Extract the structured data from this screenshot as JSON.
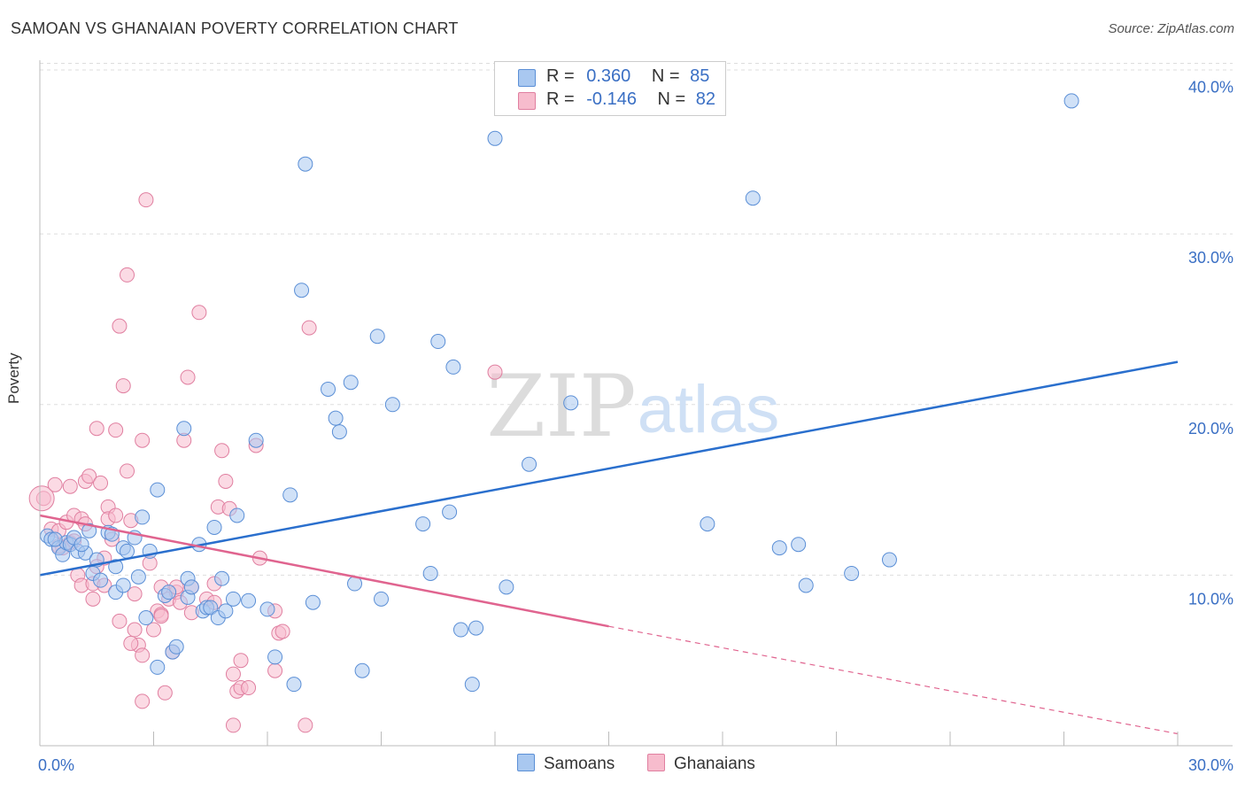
{
  "title": "SAMOAN VS GHANAIAN POVERTY CORRELATION CHART",
  "source": "Source: ZipAtlas.com",
  "watermark": {
    "zip": "ZIP",
    "atlas": "atlas"
  },
  "legend": {
    "rows": [
      {
        "r_label": "R =",
        "r_value": "0.360",
        "n_label": "N =",
        "n_value": "85",
        "color": "#a9c8f0",
        "border": "#5b8fd6"
      },
      {
        "r_label": "R =",
        "r_value": "-0.146",
        "n_label": "N =",
        "n_value": "82",
        "color": "#f7bccd",
        "border": "#e07fa0"
      }
    ]
  },
  "bottom_legend": {
    "samoans": "Samoans",
    "ghanaians": "Ghanaians"
  },
  "chart_data": {
    "type": "scatter",
    "title": "SAMOAN VS GHANAIAN POVERTY CORRELATION CHART",
    "xlabel": "",
    "ylabel": "Poverty",
    "xlim": [
      0,
      30
    ],
    "ylim": [
      0,
      40.6
    ],
    "x_tick_labels": [
      "0.0%",
      "30.0%"
    ],
    "y_ticks": [
      10,
      20,
      30,
      40
    ],
    "y_tick_labels": [
      "10.0%",
      "20.0%",
      "30.0%",
      "40.0%"
    ],
    "grid": true,
    "series": [
      {
        "name": "Samoans",
        "color": "#a9c8f0",
        "stroke": "#5b8fd6",
        "r": 0.36,
        "n": 85,
        "trend": {
          "x0": 0,
          "y0": 10.0,
          "x1": 30,
          "y1": 22.5,
          "color": "#2a6fcd"
        },
        "points": [
          [
            0.2,
            12.3
          ],
          [
            0.3,
            12.1
          ],
          [
            0.5,
            11.6
          ],
          [
            0.6,
            11.2
          ],
          [
            0.7,
            11.9
          ],
          [
            0.8,
            11.8
          ],
          [
            0.9,
            12.2
          ],
          [
            1.0,
            11.4
          ],
          [
            1.2,
            11.3
          ],
          [
            1.3,
            12.6
          ],
          [
            1.4,
            10.1
          ],
          [
            1.5,
            10.9
          ],
          [
            1.6,
            9.7
          ],
          [
            1.8,
            12.5
          ],
          [
            1.9,
            12.4
          ],
          [
            2.0,
            9.0
          ],
          [
            2.0,
            10.5
          ],
          [
            2.2,
            11.6
          ],
          [
            2.3,
            11.4
          ],
          [
            2.5,
            12.2
          ],
          [
            2.6,
            9.9
          ],
          [
            2.7,
            13.4
          ],
          [
            2.8,
            7.5
          ],
          [
            2.9,
            11.4
          ],
          [
            3.1,
            4.6
          ],
          [
            3.1,
            15.0
          ],
          [
            3.3,
            8.8
          ],
          [
            3.4,
            9.0
          ],
          [
            3.5,
            5.5
          ],
          [
            3.6,
            5.8
          ],
          [
            3.8,
            18.6
          ],
          [
            3.9,
            8.7
          ],
          [
            3.9,
            9.8
          ],
          [
            4.0,
            9.3
          ],
          [
            4.2,
            11.8
          ],
          [
            4.3,
            7.9
          ],
          [
            4.4,
            8.1
          ],
          [
            4.5,
            8.1
          ],
          [
            4.7,
            7.5
          ],
          [
            4.8,
            9.8
          ],
          [
            4.9,
            7.9
          ],
          [
            5.1,
            8.6
          ],
          [
            5.2,
            13.5
          ],
          [
            5.5,
            8.5
          ],
          [
            5.7,
            17.9
          ],
          [
            6.0,
            8.0
          ],
          [
            6.2,
            5.2
          ],
          [
            6.6,
            14.7
          ],
          [
            6.7,
            3.6
          ],
          [
            6.9,
            26.7
          ],
          [
            7.0,
            34.1
          ],
          [
            7.2,
            8.4
          ],
          [
            7.6,
            20.9
          ],
          [
            7.8,
            19.2
          ],
          [
            7.9,
            18.4
          ],
          [
            8.2,
            21.3
          ],
          [
            8.3,
            9.5
          ],
          [
            8.5,
            4.4
          ],
          [
            8.9,
            24.0
          ],
          [
            9.0,
            8.6
          ],
          [
            9.3,
            20.0
          ],
          [
            10.1,
            13.0
          ],
          [
            10.3,
            10.1
          ],
          [
            10.5,
            23.7
          ],
          [
            10.8,
            13.7
          ],
          [
            10.9,
            22.2
          ],
          [
            11.1,
            6.8
          ],
          [
            11.4,
            3.6
          ],
          [
            11.5,
            6.9
          ],
          [
            12.0,
            35.6
          ],
          [
            12.3,
            9.3
          ],
          [
            12.9,
            16.5
          ],
          [
            14.0,
            20.1
          ],
          [
            17.6,
            13.0
          ],
          [
            18.8,
            32.1
          ],
          [
            19.5,
            11.6
          ],
          [
            20.0,
            11.8
          ],
          [
            20.2,
            9.4
          ],
          [
            21.4,
            10.1
          ],
          [
            22.4,
            10.9
          ],
          [
            27.2,
            37.8
          ],
          [
            1.1,
            11.8
          ],
          [
            2.2,
            9.4
          ],
          [
            4.6,
            12.8
          ],
          [
            0.4,
            12.1
          ]
        ]
      },
      {
        "name": "Ghanaians",
        "color": "#f7bccd",
        "stroke": "#e07fa0",
        "r": -0.146,
        "n": 82,
        "trend": {
          "x0": 0,
          "y0": 13.5,
          "x1": 15,
          "y1": 7.0,
          "dash_x1": 30,
          "dash_y1": 0.7,
          "color": "#e0648f"
        },
        "points": [
          [
            0.1,
            14.5
          ],
          [
            0.3,
            12.7
          ],
          [
            0.4,
            15.3
          ],
          [
            0.5,
            12.6
          ],
          [
            0.6,
            11.6
          ],
          [
            0.7,
            13.1
          ],
          [
            0.8,
            15.2
          ],
          [
            0.8,
            11.9
          ],
          [
            0.9,
            13.5
          ],
          [
            1.0,
            10.0
          ],
          [
            1.1,
            13.3
          ],
          [
            1.1,
            9.4
          ],
          [
            1.2,
            15.5
          ],
          [
            1.3,
            15.8
          ],
          [
            1.4,
            8.6
          ],
          [
            1.4,
            9.5
          ],
          [
            1.5,
            18.6
          ],
          [
            1.6,
            15.4
          ],
          [
            1.7,
            11.0
          ],
          [
            1.7,
            9.4
          ],
          [
            1.8,
            14.0
          ],
          [
            1.8,
            13.3
          ],
          [
            1.9,
            12.1
          ],
          [
            2.0,
            13.5
          ],
          [
            2.0,
            18.5
          ],
          [
            2.1,
            7.3
          ],
          [
            2.1,
            24.6
          ],
          [
            2.2,
            21.1
          ],
          [
            2.3,
            27.6
          ],
          [
            2.3,
            16.1
          ],
          [
            2.4,
            13.2
          ],
          [
            2.5,
            6.8
          ],
          [
            2.5,
            8.9
          ],
          [
            2.6,
            5.9
          ],
          [
            2.7,
            5.3
          ],
          [
            2.7,
            2.6
          ],
          [
            2.7,
            17.9
          ],
          [
            2.8,
            32.0
          ],
          [
            2.9,
            10.7
          ],
          [
            3.0,
            6.8
          ],
          [
            3.1,
            7.9
          ],
          [
            3.2,
            9.3
          ],
          [
            3.2,
            7.7
          ],
          [
            3.3,
            3.1
          ],
          [
            3.4,
            8.6
          ],
          [
            3.5,
            5.5
          ],
          [
            3.6,
            9.0
          ],
          [
            3.6,
            9.3
          ],
          [
            3.7,
            8.4
          ],
          [
            3.8,
            17.9
          ],
          [
            3.9,
            21.6
          ],
          [
            4.0,
            7.8
          ],
          [
            4.2,
            25.4
          ],
          [
            4.4,
            8.6
          ],
          [
            4.6,
            9.5
          ],
          [
            4.7,
            14.0
          ],
          [
            4.8,
            17.3
          ],
          [
            4.9,
            15.5
          ],
          [
            5.0,
            13.9
          ],
          [
            5.1,
            4.2
          ],
          [
            5.2,
            3.2
          ],
          [
            5.3,
            3.4
          ],
          [
            5.3,
            5.0
          ],
          [
            5.5,
            3.4
          ],
          [
            5.7,
            17.6
          ],
          [
            5.8,
            11.0
          ],
          [
            6.2,
            4.4
          ],
          [
            6.3,
            6.6
          ],
          [
            6.4,
            6.7
          ],
          [
            7.1,
            24.5
          ],
          [
            7.0,
            1.2
          ],
          [
            12.0,
            21.9
          ],
          [
            5.1,
            1.2
          ],
          [
            4.0,
            9.3
          ],
          [
            3.2,
            7.6
          ],
          [
            2.4,
            6.0
          ],
          [
            1.5,
            10.5
          ],
          [
            0.5,
            11.7
          ],
          [
            6.2,
            7.9
          ],
          [
            4.6,
            8.4
          ],
          [
            1.2,
            13.0
          ],
          [
            0.9,
            12.0
          ]
        ]
      }
    ]
  }
}
